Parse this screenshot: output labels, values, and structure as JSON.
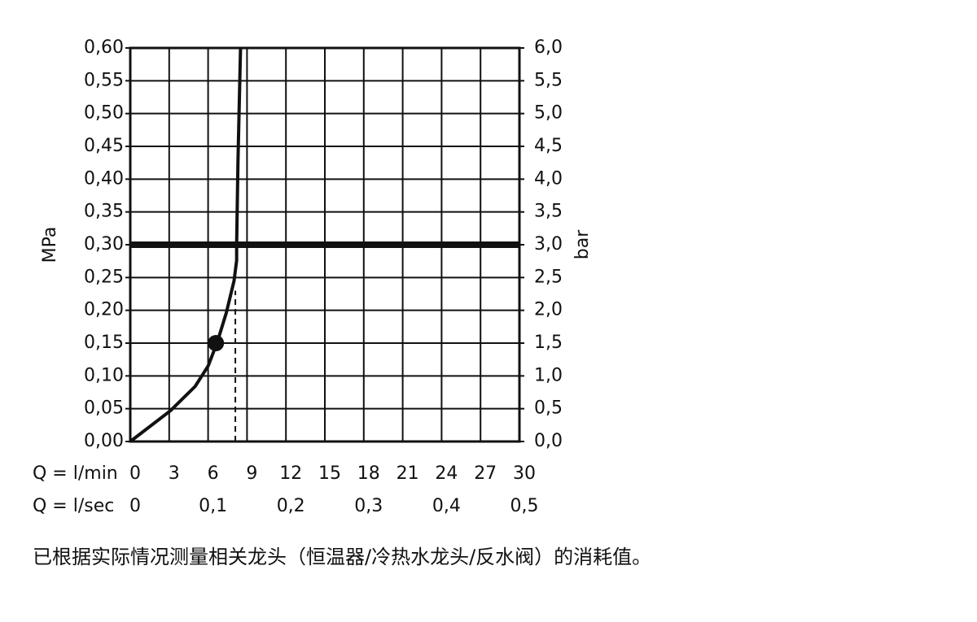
{
  "chart_data": {
    "type": "line",
    "x": [
      0,
      3.1,
      5.0,
      6.0,
      6.7,
      7.4,
      8.0,
      8.2,
      8.2,
      8.3,
      8.5
    ],
    "values": [
      0,
      0.047,
      0.084,
      0.115,
      0.151,
      0.196,
      0.245,
      0.276,
      0.3,
      0.425,
      0.6
    ],
    "color": "#111111",
    "marker": {
      "x": 6.6,
      "y": 0.15
    },
    "reference_line": {
      "x": 8.1,
      "y_top": 0.23
    },
    "threshold_y": 0.3,
    "xlim": [
      0,
      30
    ],
    "xticks": [
      0,
      3,
      6,
      9,
      12,
      15,
      18,
      21,
      24,
      27,
      30
    ],
    "x2lim": [
      0,
      0.5
    ],
    "x2ticks": [
      0,
      {
        "value": 0.1,
        "label": "0,1"
      },
      {
        "value": 0.2,
        "label": "0,2"
      },
      {
        "value": 0.3,
        "label": "0,3"
      },
      {
        "value": 0.4,
        "label": "0,4"
      },
      {
        "value": 0.5,
        "label": "0,5"
      }
    ],
    "ylim": [
      0,
      0.6
    ],
    "yticks": [
      {
        "value": 0,
        "label": "0,00"
      },
      {
        "value": 0.05,
        "label": "0,05"
      },
      {
        "value": 0.1,
        "label": "0,10"
      },
      {
        "value": 0.15,
        "label": "0,15"
      },
      {
        "value": 0.2,
        "label": "0,20"
      },
      {
        "value": 0.25,
        "label": "0,25"
      },
      {
        "value": 0.3,
        "label": "0,30"
      },
      {
        "value": 0.35,
        "label": "0,35"
      },
      {
        "value": 0.4,
        "label": "0,40"
      },
      {
        "value": 0.45,
        "label": "0,45"
      },
      {
        "value": 0.5,
        "label": "0,50"
      },
      {
        "value": 0.55,
        "label": "0,55"
      },
      {
        "value": 0.6,
        "label": "0,60"
      }
    ],
    "y2lim": [
      0,
      6
    ],
    "y2ticks": [
      {
        "value": 0,
        "label": "0,0"
      },
      {
        "value": 0.5,
        "label": "0,5"
      },
      {
        "value": 1,
        "label": "1,0"
      },
      {
        "value": 1.5,
        "label": "1,5"
      },
      {
        "value": 2,
        "label": "2,0"
      },
      {
        "value": 2.5,
        "label": "2,5"
      },
      {
        "value": 3,
        "label": "3,0"
      },
      {
        "value": 3.5,
        "label": "3,5"
      },
      {
        "value": 4,
        "label": "4,0"
      },
      {
        "value": 4.5,
        "label": "4,5"
      },
      {
        "value": 5,
        "label": "5,0"
      },
      {
        "value": 5.5,
        "label": "5,5"
      },
      {
        "value": 6,
        "label": "6,0"
      }
    ],
    "grid": true,
    "xlabel": "Q = l/min",
    "x2label": "Q = l/sec",
    "ylabel": "MPa",
    "y2label": "bar",
    "caption": "已根据实际情况测量相关龙头（恒温器/冷热水龙头/反水阀）的消耗值。"
  }
}
